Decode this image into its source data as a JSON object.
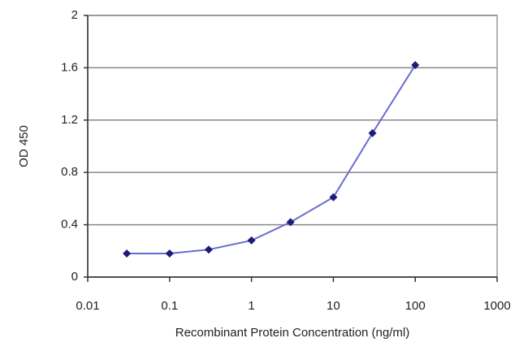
{
  "chart_data": {
    "type": "line",
    "x_label": "Recombinant Protein Concentration (ng/ml)",
    "y_label": "OD 450",
    "x": [
      0.03,
      0.1,
      0.3,
      1,
      3,
      10,
      30,
      100
    ],
    "values": [
      0.18,
      0.18,
      0.21,
      0.28,
      0.42,
      0.61,
      1.1,
      1.62
    ],
    "color": "#6a6ad0",
    "marker_color": "#1c1c78",
    "xlim": [
      0.01,
      1000
    ],
    "xticks": [
      0.01,
      0.1,
      1,
      10,
      100,
      1000
    ],
    "log_x": true,
    "ylim": [
      0,
      2
    ],
    "yticks": [
      0,
      0.4,
      0.8,
      1.2,
      1.6,
      2
    ],
    "grid": true
  }
}
